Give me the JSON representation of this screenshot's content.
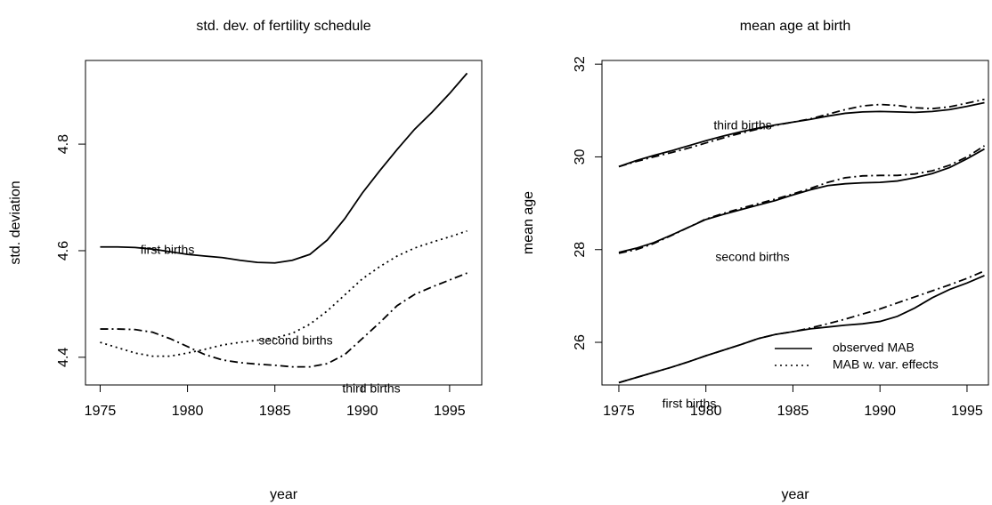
{
  "chart_data": [
    {
      "type": "line",
      "title": "std. dev. of fertility schedule",
      "x_label": "year",
      "y_label": "std. deviation",
      "x": [
        1975,
        1976,
        1977,
        1978,
        1979,
        1980,
        1981,
        1982,
        1983,
        1984,
        1985,
        1986,
        1987,
        1988,
        1989,
        1990,
        1991,
        1992,
        1993,
        1994,
        1995,
        1996
      ],
      "xlim": [
        1974.16,
        1996.84
      ],
      "xticks": [
        1975,
        1980,
        1985,
        1990,
        1995
      ],
      "ylim": [
        4.348,
        4.957
      ],
      "yticks": [
        4.4,
        4.6,
        4.8
      ],
      "series": [
        {
          "color": "#000000",
          "dash": "solid",
          "values": [
            4.607,
            4.607,
            4.606,
            4.603,
            4.598,
            4.593,
            4.59,
            4.587,
            4.582,
            4.578,
            4.577,
            4.582,
            4.593,
            4.62,
            4.66,
            4.708,
            4.75,
            4.79,
            4.828,
            4.86,
            4.895,
            4.933
          ]
        },
        {
          "color": "#000000",
          "dash": "dotted",
          "values": [
            4.428,
            4.418,
            4.408,
            4.402,
            4.402,
            4.408,
            4.415,
            4.423,
            4.428,
            4.432,
            4.436,
            4.445,
            4.462,
            4.487,
            4.517,
            4.547,
            4.57,
            4.59,
            4.605,
            4.616,
            4.626,
            4.637
          ]
        },
        {
          "color": "#000000",
          "dash": "dashdot",
          "values": [
            4.453,
            4.453,
            4.452,
            4.447,
            4.435,
            4.42,
            4.405,
            4.395,
            4.39,
            4.387,
            4.385,
            4.382,
            4.382,
            4.388,
            4.405,
            4.435,
            4.465,
            4.497,
            4.518,
            4.532,
            4.545,
            4.558
          ]
        }
      ],
      "annotations": [
        "first births",
        "second births",
        "third births"
      ]
    },
    {
      "type": "line",
      "title": "mean age at birth",
      "x_label": "year",
      "y_label": "mean age",
      "x": [
        1975,
        1976,
        1977,
        1978,
        1979,
        1980,
        1981,
        1982,
        1983,
        1984,
        1985,
        1986,
        1987,
        1988,
        1989,
        1990,
        1991,
        1992,
        1993,
        1994,
        1995,
        1996
      ],
      "xlim": [
        1974.03,
        1996.23
      ],
      "xticks": [
        1975,
        1980,
        1985,
        1990,
        1995
      ],
      "ylim": [
        25.08,
        32.08
      ],
      "yticks": [
        26,
        28,
        30,
        32
      ],
      "series": [
        {
          "color": "#000000",
          "dash": "solid",
          "values": [
            29.79,
            29.92,
            30.03,
            30.13,
            30.24,
            30.35,
            30.45,
            30.54,
            30.62,
            30.69,
            30.75,
            30.81,
            30.88,
            30.94,
            30.97,
            30.98,
            30.97,
            30.96,
            30.98,
            31.02,
            31.09,
            31.17
          ]
        },
        {
          "color": "#000000",
          "dash": "dashdot",
          "values": [
            29.79,
            29.9,
            30.0,
            30.09,
            30.19,
            30.3,
            30.41,
            30.51,
            30.6,
            30.68,
            30.75,
            30.82,
            30.92,
            31.02,
            31.1,
            31.13,
            31.11,
            31.06,
            31.04,
            31.08,
            31.16,
            31.24
          ]
        },
        {
          "color": "#000000",
          "dash": "solid",
          "values": [
            27.94,
            28.03,
            28.15,
            28.31,
            28.48,
            28.65,
            28.76,
            28.86,
            28.96,
            29.06,
            29.18,
            29.29,
            29.38,
            29.42,
            29.44,
            29.45,
            29.48,
            29.55,
            29.64,
            29.77,
            29.96,
            30.17
          ]
        },
        {
          "color": "#000000",
          "dash": "dashdot",
          "values": [
            27.92,
            28.0,
            28.13,
            28.3,
            28.48,
            28.66,
            28.78,
            28.89,
            28.99,
            29.09,
            29.2,
            29.32,
            29.45,
            29.55,
            29.59,
            29.6,
            29.6,
            29.63,
            29.7,
            29.82,
            30.0,
            30.24
          ]
        },
        {
          "color": "#000000",
          "dash": "solid",
          "values": [
            25.13,
            25.24,
            25.35,
            25.46,
            25.58,
            25.71,
            25.83,
            25.95,
            26.08,
            26.17,
            26.23,
            26.29,
            26.33,
            26.37,
            26.4,
            26.45,
            26.56,
            26.74,
            26.96,
            27.14,
            27.28,
            27.44
          ]
        },
        {
          "color": "#000000",
          "dash": "dashdot",
          "values": [
            25.13,
            25.24,
            25.35,
            25.46,
            25.58,
            25.71,
            25.83,
            25.95,
            26.08,
            26.17,
            26.23,
            26.31,
            26.4,
            26.5,
            26.61,
            26.72,
            26.85,
            26.98,
            27.11,
            27.24,
            27.38,
            27.54
          ]
        }
      ],
      "annotations": [
        "third births",
        "second births",
        "first births"
      ],
      "legend": [
        {
          "label": "observed MAB",
          "dash": "solid"
        },
        {
          "label": "MAB w. var. effects",
          "dash": "dotted"
        }
      ]
    }
  ]
}
